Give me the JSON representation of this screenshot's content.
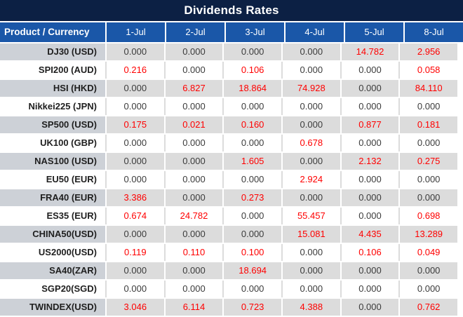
{
  "title": "Dividends Rates",
  "chart_data": {
    "type": "table",
    "title": "Dividends Rates",
    "corner_header": "Product / Currency",
    "columns": [
      "1-Jul",
      "2-Jul",
      "3-Jul",
      "4-Jul",
      "5-Jul",
      "8-Jul"
    ],
    "rows": [
      {
        "product": "DJ30 (USD)",
        "values": [
          "0.000",
          "0.000",
          "0.000",
          "0.000",
          "14.782",
          "2.956"
        ]
      },
      {
        "product": "SPI200 (AUD)",
        "values": [
          "0.216",
          "0.000",
          "0.106",
          "0.000",
          "0.000",
          "0.058"
        ]
      },
      {
        "product": "HSI (HKD)",
        "values": [
          "0.000",
          "6.827",
          "18.864",
          "74.928",
          "0.000",
          "84.110"
        ]
      },
      {
        "product": "Nikkei225 (JPN)",
        "values": [
          "0.000",
          "0.000",
          "0.000",
          "0.000",
          "0.000",
          "0.000"
        ]
      },
      {
        "product": "SP500 (USD)",
        "values": [
          "0.175",
          "0.021",
          "0.160",
          "0.000",
          "0.877",
          "0.181"
        ]
      },
      {
        "product": "UK100 (GBP)",
        "values": [
          "0.000",
          "0.000",
          "0.000",
          "0.678",
          "0.000",
          "0.000"
        ]
      },
      {
        "product": "NAS100 (USD)",
        "values": [
          "0.000",
          "0.000",
          "1.605",
          "0.000",
          "2.132",
          "0.275"
        ]
      },
      {
        "product": "EU50 (EUR)",
        "values": [
          "0.000",
          "0.000",
          "0.000",
          "2.924",
          "0.000",
          "0.000"
        ]
      },
      {
        "product": "FRA40 (EUR)",
        "values": [
          "3.386",
          "0.000",
          "0.273",
          "0.000",
          "0.000",
          "0.000"
        ]
      },
      {
        "product": "ES35 (EUR)",
        "values": [
          "0.674",
          "24.782",
          "0.000",
          "55.457",
          "0.000",
          "0.698"
        ]
      },
      {
        "product": "CHINA50(USD)",
        "values": [
          "0.000",
          "0.000",
          "0.000",
          "15.081",
          "4.435",
          "13.289"
        ]
      },
      {
        "product": "US2000(USD)",
        "values": [
          "0.119",
          "0.110",
          "0.100",
          "0.000",
          "0.106",
          "0.049"
        ]
      },
      {
        "product": "SA40(ZAR)",
        "values": [
          "0.000",
          "0.000",
          "18.694",
          "0.000",
          "0.000",
          "0.000"
        ]
      },
      {
        "product": "SGP20(SGD)",
        "values": [
          "0.000",
          "0.000",
          "0.000",
          "0.000",
          "0.000",
          "0.000"
        ]
      },
      {
        "product": "TWINDEX(USD)",
        "values": [
          "3.046",
          "6.114",
          "0.723",
          "4.388",
          "0.000",
          "0.762"
        ]
      }
    ],
    "value_color_rule": "nonzero values rendered in red, zeros in dark gray",
    "row_striping": "alternating gray/white starting gray"
  },
  "colors": {
    "title_bar_bg": "#0C2044",
    "header_bg": "#1A57A8",
    "header_text": "#FFFFFF",
    "row_stripe_label_bg": "#CDD1D7",
    "row_stripe_value_bg": "#DCDCDC",
    "row_white_bg": "#FFFFFF",
    "product_text": "#1F1F1F",
    "zero_value_text": "#3B3B3B",
    "nonzero_value_text": "#FF0000"
  }
}
